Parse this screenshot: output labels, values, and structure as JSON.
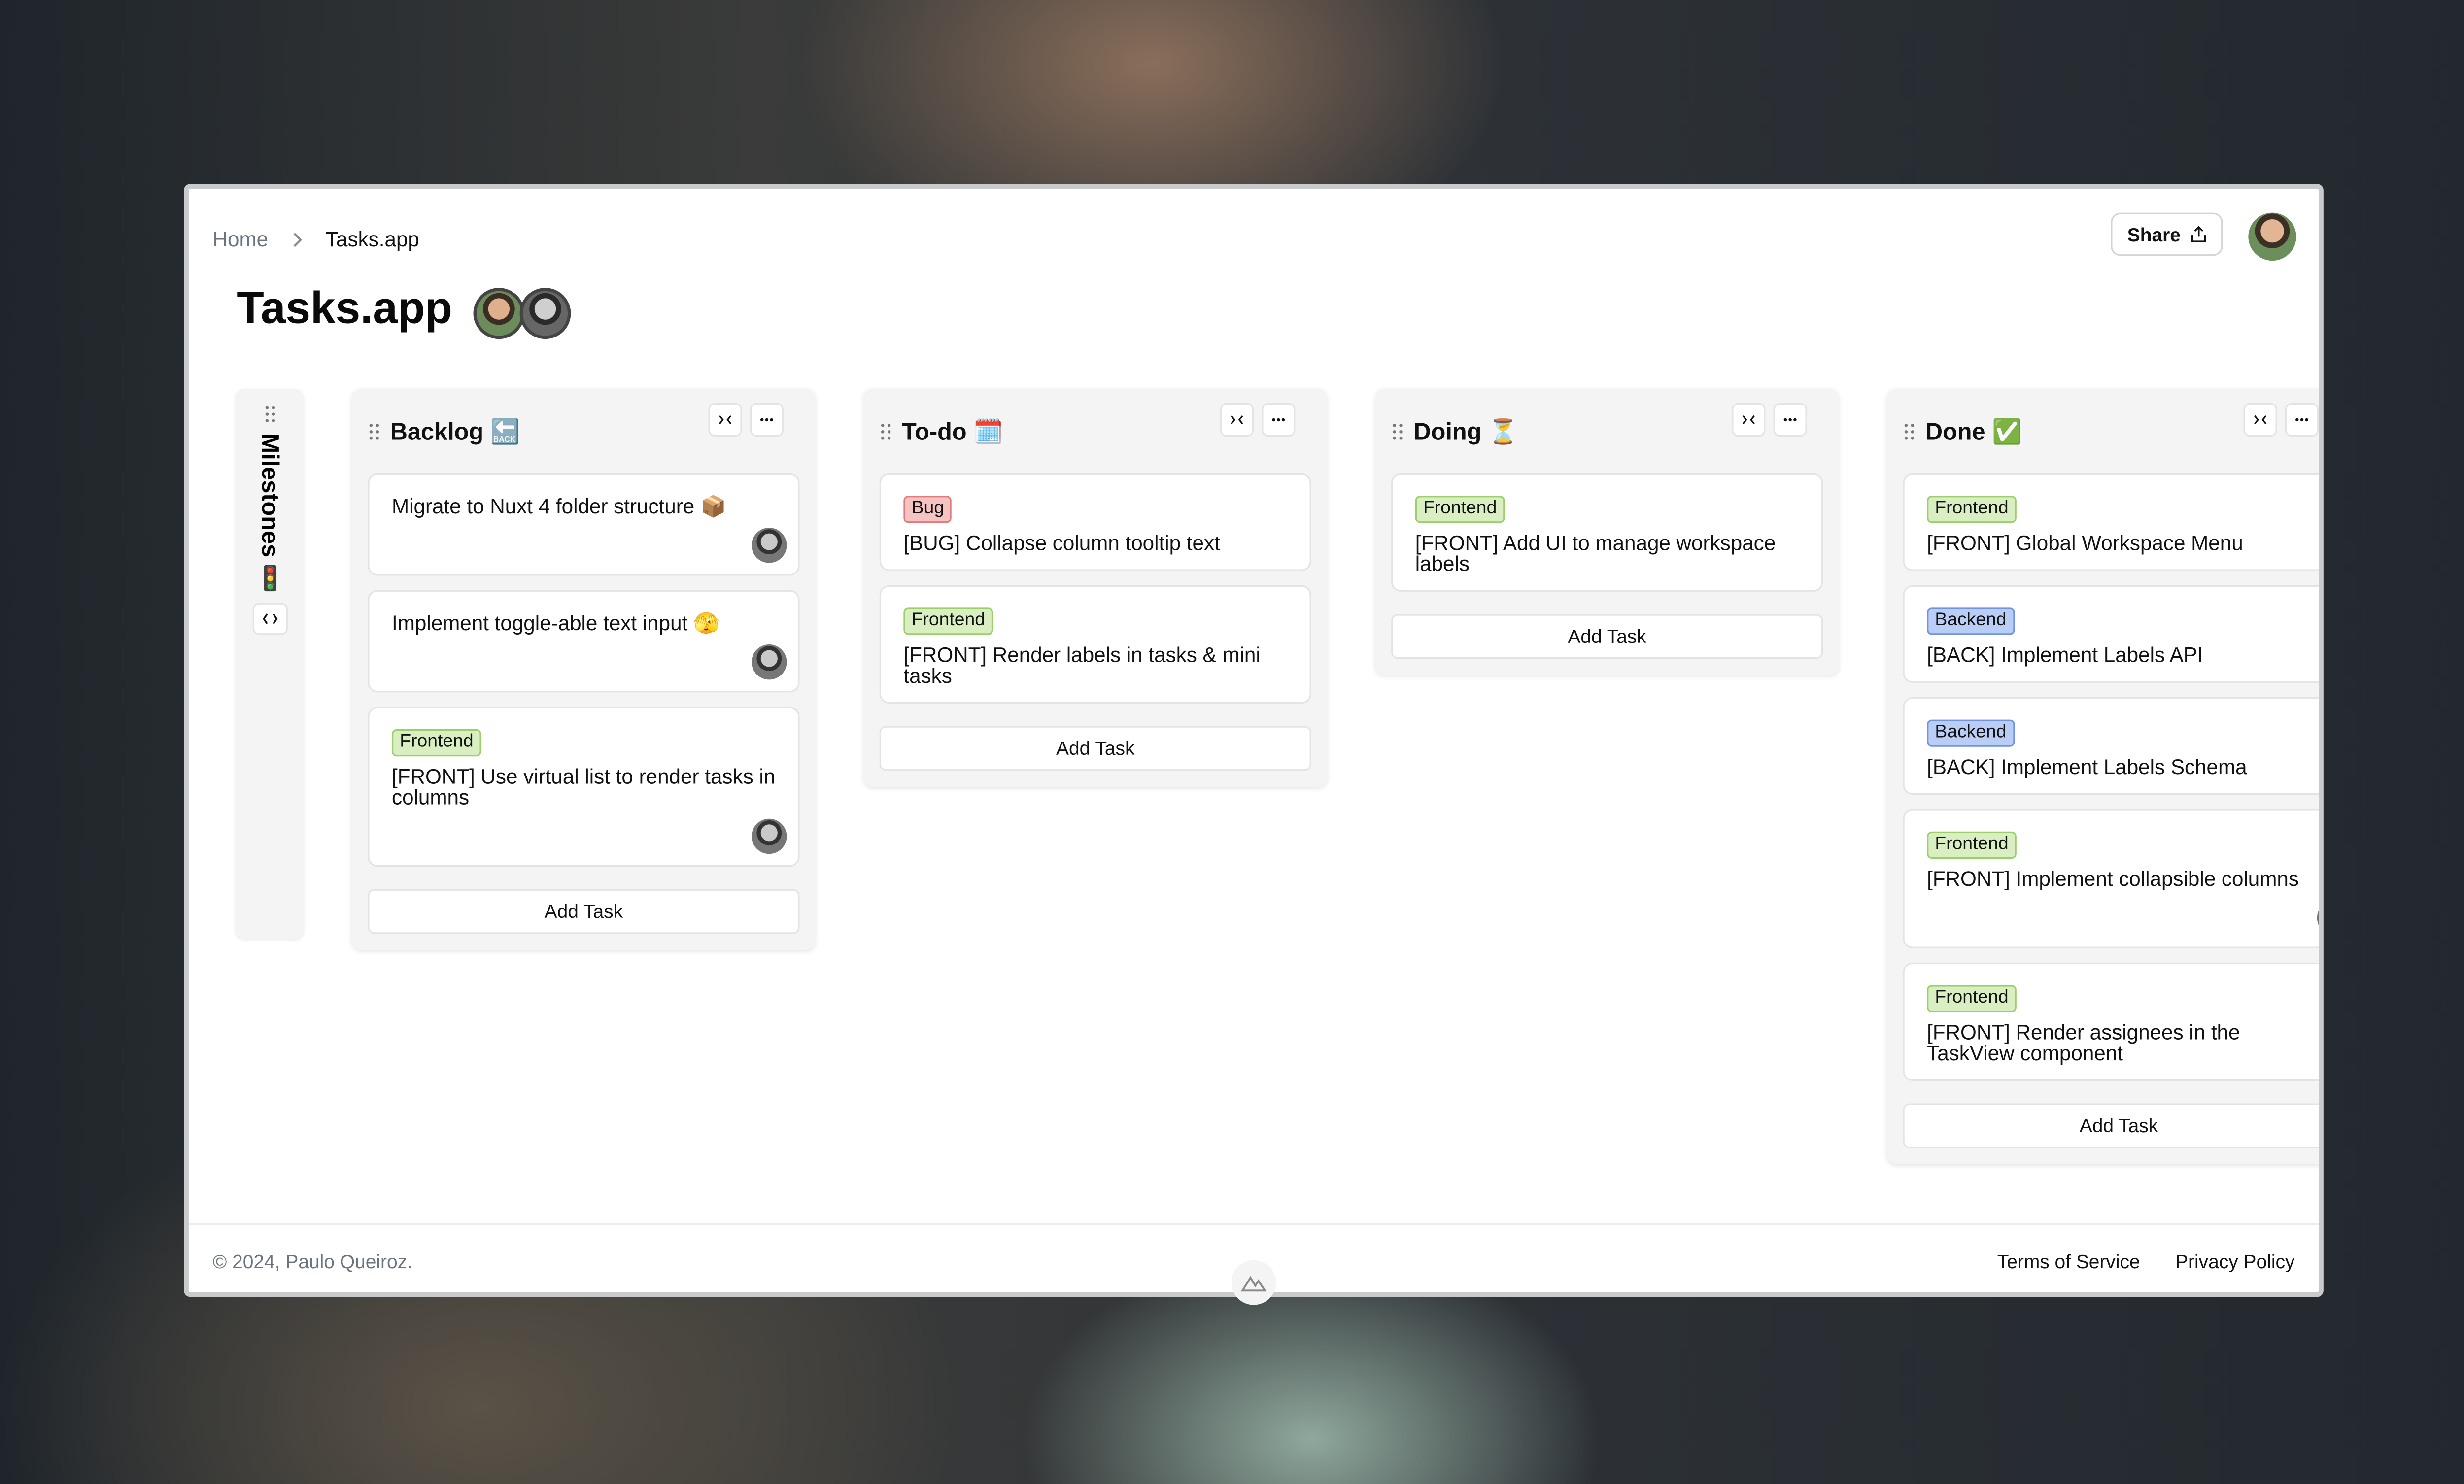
{
  "breadcrumb": [
    "Home",
    "Tasks.app"
  ],
  "header": {
    "share": "Share"
  },
  "title": "Tasks.app",
  "collapsed_column": {
    "title": "Milestones 🚦"
  },
  "add_task": "Add Task",
  "columns": [
    {
      "title": "Backlog 🔙",
      "tasks": [
        {
          "text": "Migrate to Nuxt 4 folder structure 📦"
        },
        {
          "text": "Implement toggle-able text input 🫣"
        },
        {
          "tag": {
            "label": "Frontend",
            "color": "green"
          },
          "text": "[FRONT] Use virtual list to render tasks in columns"
        }
      ]
    },
    {
      "title": "To-do 🗓️",
      "tasks": [
        {
          "tag": {
            "label": "Bug",
            "color": "red"
          },
          "text": "[BUG] Collapse column tooltip text"
        },
        {
          "tag": {
            "label": "Frontend",
            "color": "green"
          },
          "text": "[FRONT] Render labels in tasks & mini tasks"
        }
      ]
    },
    {
      "title": "Doing ⏳",
      "tasks": [
        {
          "tag": {
            "label": "Frontend",
            "color": "green"
          },
          "text": "[FRONT] Add UI to manage workspace labels"
        }
      ]
    },
    {
      "title": "Done ✅",
      "tasks": [
        {
          "tag": {
            "label": "Frontend",
            "color": "green"
          },
          "text": "[FRONT] Global Workspace Menu"
        },
        {
          "tag": {
            "label": "Backend",
            "color": "blue"
          },
          "text": "[BACK] Implement Labels API"
        },
        {
          "tag": {
            "label": "Backend",
            "color": "blue"
          },
          "text": "[BACK] Implement Labels Schema"
        },
        {
          "tag": {
            "label": "Frontend",
            "color": "green"
          },
          "text": "[FRONT] Implement collapsible columns"
        },
        {
          "tag": {
            "label": "Frontend",
            "color": "green"
          },
          "text": "[FRONT] Render assignees in the TaskView component"
        }
      ]
    }
  ],
  "footer": {
    "copyright": "© 2024, Paulo Queiroz.",
    "links": [
      "Terms of Service",
      "Privacy Policy"
    ]
  }
}
